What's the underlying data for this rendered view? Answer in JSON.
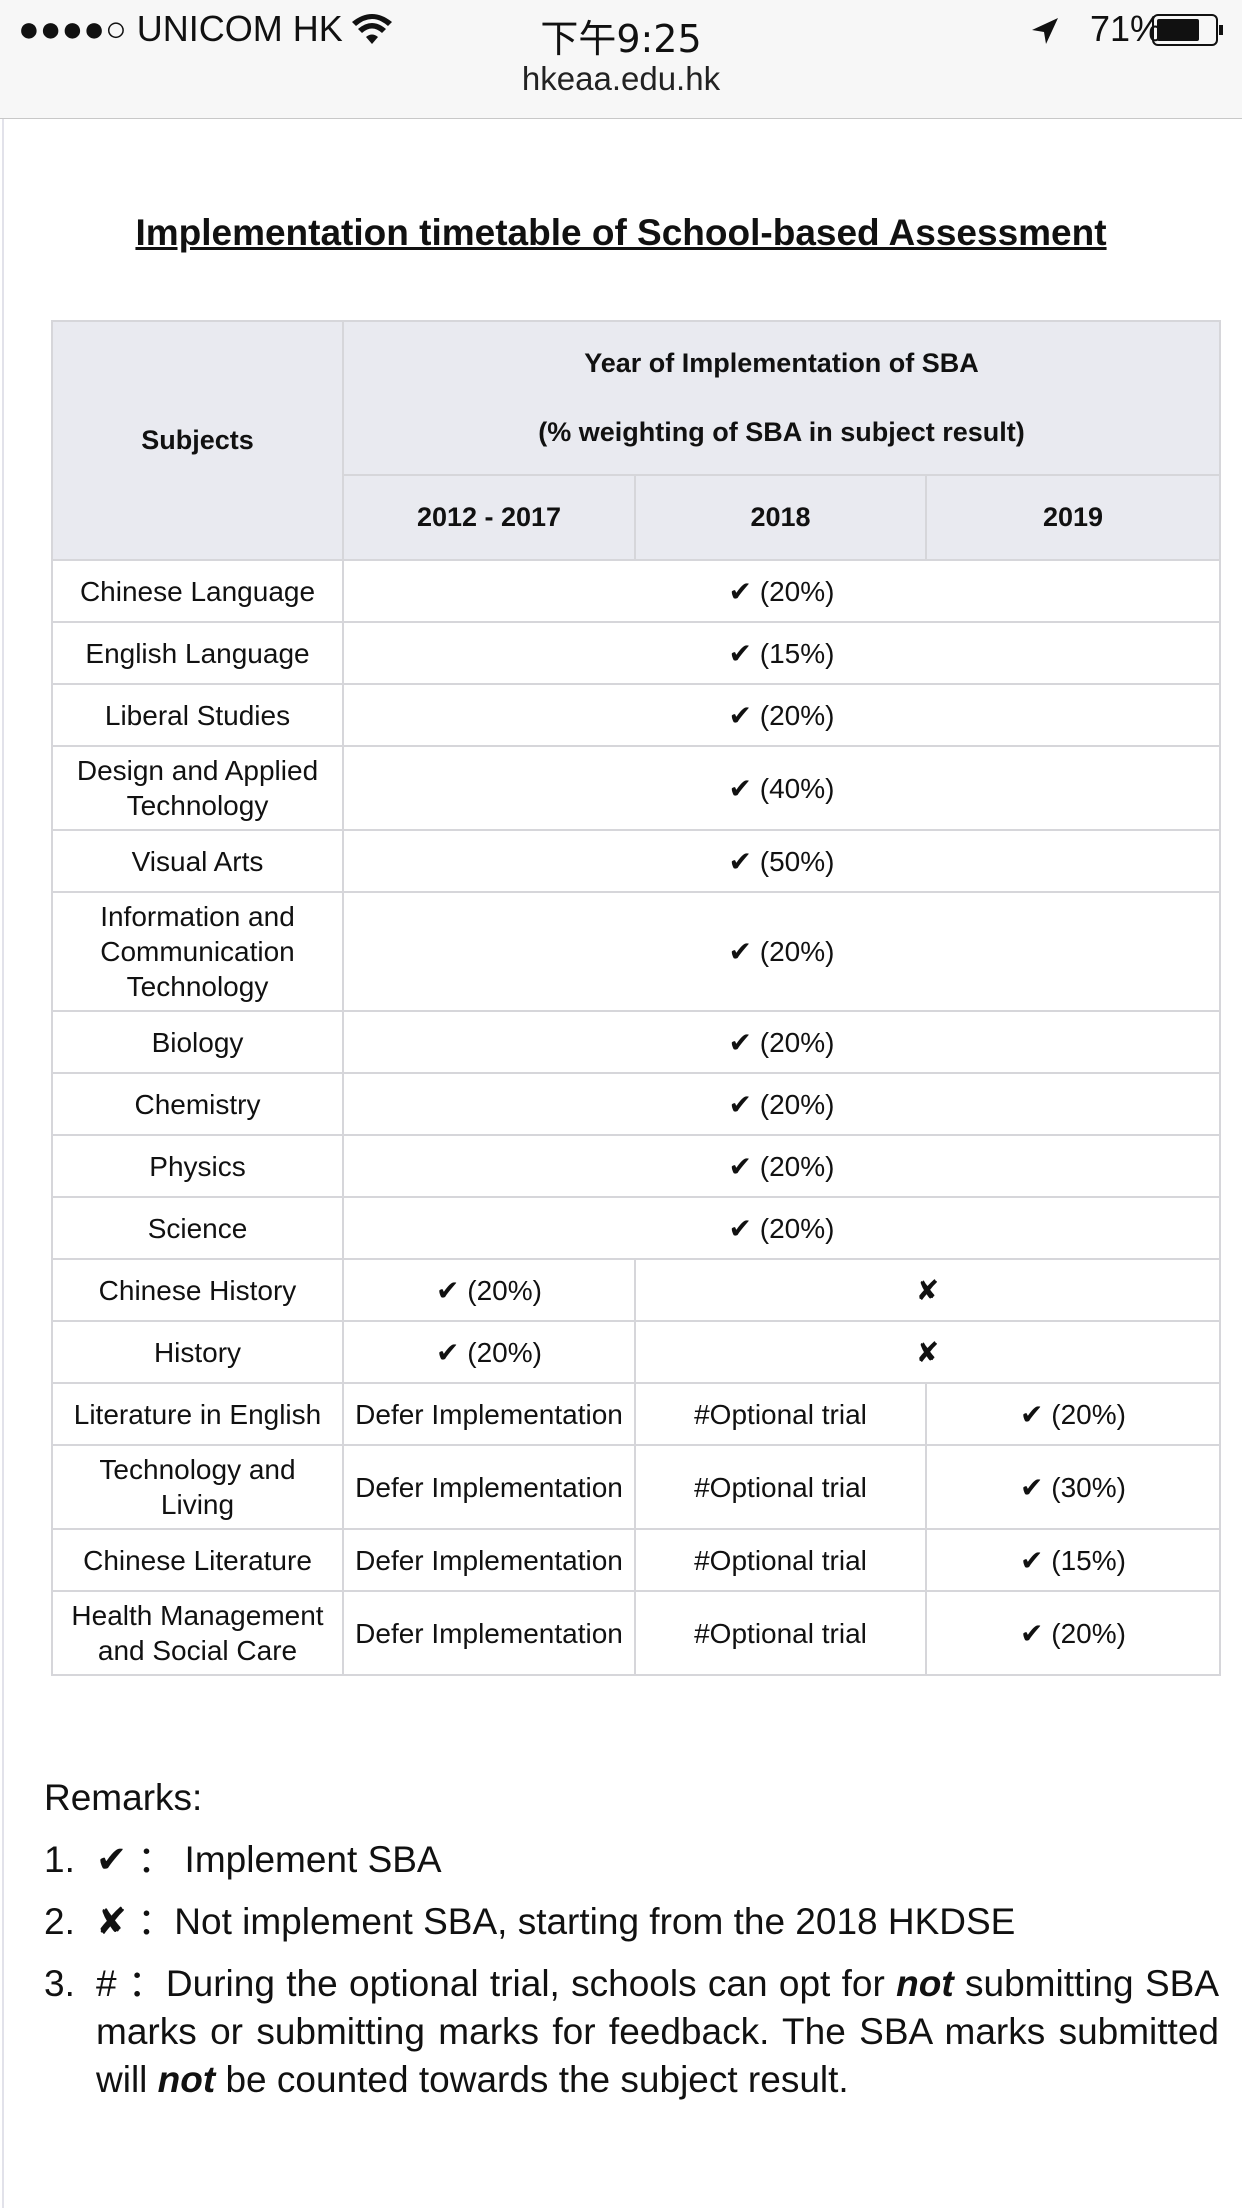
{
  "status_bar": {
    "carrier": "●●●●○ UNICOM HK",
    "time": "下午9:25",
    "battery": "71%"
  },
  "url": "hkeaa.edu.hk",
  "title": "Implementation timetable of School-based Assessment",
  "table": {
    "header": {
      "subjects": "Subjects",
      "group_title": "Year of Implementation of SBA",
      "group_subtitle": "(% weighting of SBA in subject result)",
      "years": [
        "2012 - 2017",
        "2018",
        "2019"
      ]
    },
    "rows": [
      {
        "subject": "Chinese Language",
        "cells": [
          "✔ (20%)"
        ]
      },
      {
        "subject": "English Language",
        "cells": [
          "✔ (15%)"
        ]
      },
      {
        "subject": "Liberal Studies",
        "cells": [
          "✔ (20%)"
        ]
      },
      {
        "subject": "Design and Applied Technology",
        "cells": [
          "✔ (40%)"
        ]
      },
      {
        "subject": "Visual Arts",
        "cells": [
          "✔ (50%)"
        ]
      },
      {
        "subject": "Information and Communication Technology",
        "cells": [
          "✔ (20%)"
        ]
      },
      {
        "subject": "Biology",
        "cells": [
          "✔ (20%)"
        ]
      },
      {
        "subject": "Chemistry",
        "cells": [
          "✔ (20%)"
        ]
      },
      {
        "subject": "Physics",
        "cells": [
          "✔ (20%)"
        ]
      },
      {
        "subject": "Science",
        "cells": [
          "✔ (20%)"
        ]
      },
      {
        "subject": "Chinese History",
        "cells": [
          "✔ (20%)",
          "✘"
        ]
      },
      {
        "subject": "History",
        "cells": [
          "✔ (20%)",
          "✘"
        ]
      },
      {
        "subject": "Literature in English",
        "cells": [
          "Defer Implementation",
          "#Optional trial",
          "✔ (20%)"
        ]
      },
      {
        "subject": "Technology and Living",
        "cells": [
          "Defer Implementation",
          "#Optional trial",
          "✔ (30%)"
        ]
      },
      {
        "subject": "Chinese Literature",
        "cells": [
          "Defer Implementation",
          "#Optional trial",
          "✔ (15%)"
        ]
      },
      {
        "subject": "Health Management and Social Care",
        "cells": [
          "Defer Implementation",
          "#Optional trial",
          "✔ (20%)"
        ]
      }
    ]
  },
  "remarks": {
    "heading": "Remarks:",
    "items": [
      {
        "number": "1.",
        "parts": [
          "✔ ： Implement SBA"
        ]
      },
      {
        "number": "2.",
        "parts": [
          "✘ ：Not implement SBA, starting from the 2018 HKDSE"
        ]
      },
      {
        "number": "3.",
        "parts": [
          "# ：During the optional trial, schools can opt for ",
          "not",
          " submitting SBA marks or submitting marks for feedback. The SBA marks submitted will ",
          "not",
          " be counted towards the subject result."
        ]
      }
    ]
  }
}
